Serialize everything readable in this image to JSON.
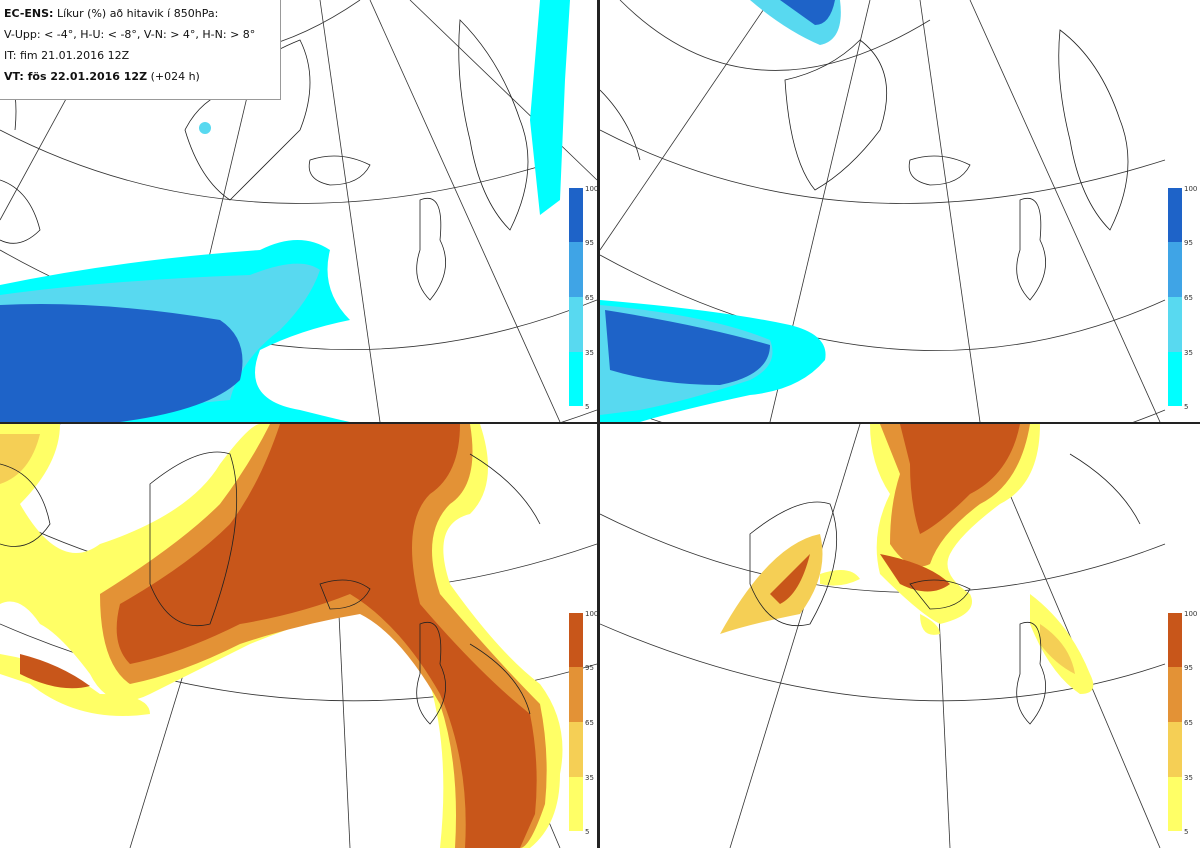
{
  "header": {
    "line1_bold": "EC-ENS:",
    "line1_rest": "Líkur (%) að hitavik í 850hPa:",
    "line2": "V-Upp: < -4°, H-U: < -8°, V-N: > 4°, H-N: > 8°",
    "line3": "IT: fim 21.01.2016 12Z",
    "line4_bold": "VT: fös 22.01.2016 12Z",
    "line4_rest": "(+024 h)"
  },
  "legend_ticks": [
    "100",
    "95",
    "65",
    "35",
    "5"
  ],
  "colors": {
    "blue": [
      "#00ffff",
      "#58d9f0",
      "#3fa4e6",
      "#1e63c8"
    ],
    "orange": [
      "#ffff66",
      "#f5cf55",
      "#e39236",
      "#c8561a"
    ],
    "coast": "#222222",
    "grid": "#333333"
  },
  "panels": [
    {
      "id": "top-left",
      "variable": "V-Upp",
      "scheme": "blue"
    },
    {
      "id": "top-right",
      "variable": "H-U",
      "scheme": "blue"
    },
    {
      "id": "bottom-left",
      "variable": "V-N",
      "scheme": "orange"
    },
    {
      "id": "bottom-right",
      "variable": "H-N",
      "scheme": "orange"
    }
  ]
}
